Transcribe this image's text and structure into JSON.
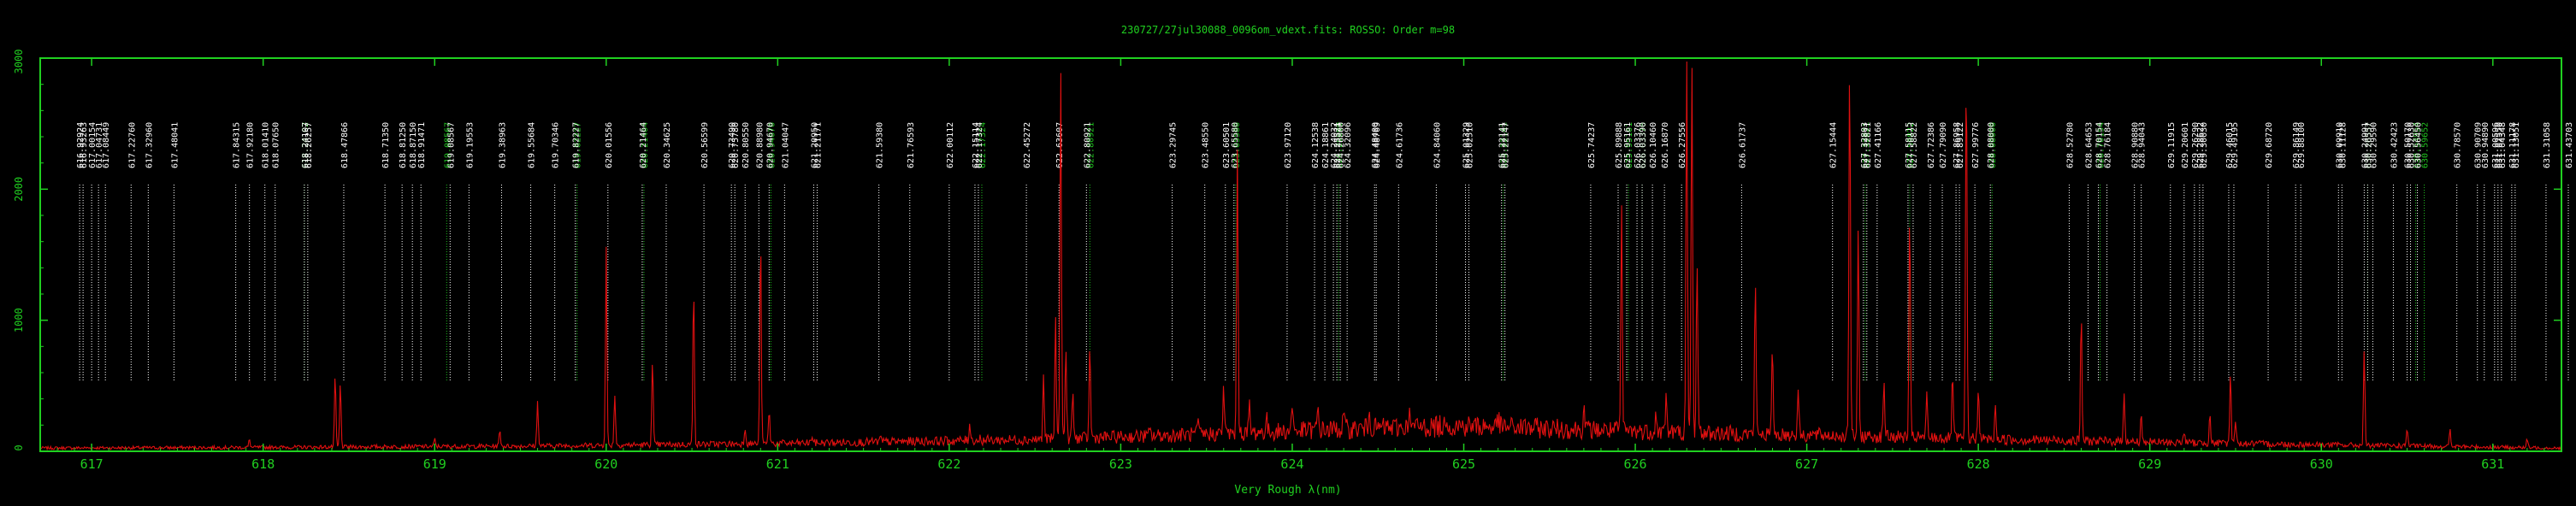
{
  "chart_data": {
    "type": "line",
    "title": "230727/27jul30088_0096om_vdext.fits: ROSSO: Order m=98",
    "xlabel": "Very Rough λ(nm)",
    "ylabel": "",
    "xlim": [
      616.7,
      631.4
    ],
    "ylim": [
      0,
      3000
    ],
    "grid": false,
    "legend": "none",
    "x_ticks": [
      617,
      618,
      619,
      620,
      621,
      622,
      623,
      624,
      625,
      626,
      627,
      628,
      629,
      630,
      631
    ],
    "y_ticks": [
      0,
      1000,
      2000,
      3000
    ],
    "y_tick_labels_visible": [
      "0",
      "1000",
      "2000",
      "3000"
    ],
    "series": [
      {
        "color": "#e01010",
        "continuum": [
          [
            616.7,
            25
          ],
          [
            618.0,
            30
          ],
          [
            619.5,
            40
          ],
          [
            621.0,
            60
          ],
          [
            622.5,
            90
          ],
          [
            623.5,
            130
          ],
          [
            624.3,
            170
          ],
          [
            625.0,
            195
          ],
          [
            625.6,
            170
          ],
          [
            626.4,
            140
          ],
          [
            627.2,
            120
          ],
          [
            628.0,
            95
          ],
          [
            629.0,
            70
          ],
          [
            630.0,
            50
          ],
          [
            631.4,
            25
          ]
        ],
        "peaks": [
          [
            617.92,
            90
          ],
          [
            618.07,
            40
          ],
          [
            618.42,
            580
          ],
          [
            618.45,
            520
          ],
          [
            619.0,
            90
          ],
          [
            619.38,
            160
          ],
          [
            619.6,
            380
          ],
          [
            620.0,
            1550
          ],
          [
            620.05,
            440
          ],
          [
            620.27,
            680
          ],
          [
            620.51,
            1270
          ],
          [
            620.81,
            190
          ],
          [
            620.9,
            1660
          ],
          [
            620.95,
            320
          ],
          [
            621.2,
            120
          ],
          [
            621.6,
            100
          ],
          [
            622.12,
            220
          ],
          [
            622.18,
            100
          ],
          [
            622.55,
            560
          ],
          [
            622.62,
            1000
          ],
          [
            622.65,
            3000
          ],
          [
            622.68,
            800
          ],
          [
            622.72,
            450
          ],
          [
            622.82,
            800
          ],
          [
            623.17,
            160
          ],
          [
            623.25,
            120
          ],
          [
            623.45,
            220
          ],
          [
            623.6,
            500
          ],
          [
            623.68,
            2350
          ],
          [
            623.75,
            350
          ],
          [
            623.85,
            250
          ],
          [
            624.0,
            380
          ],
          [
            624.15,
            330
          ],
          [
            624.3,
            300
          ],
          [
            624.45,
            360
          ],
          [
            624.68,
            300
          ],
          [
            624.9,
            300
          ],
          [
            625.2,
            260
          ],
          [
            625.7,
            350
          ],
          [
            625.92,
            1850
          ],
          [
            626.12,
            280
          ],
          [
            626.18,
            440
          ],
          [
            626.3,
            2960
          ],
          [
            626.33,
            3000
          ],
          [
            626.36,
            1500
          ],
          [
            626.7,
            1300
          ],
          [
            626.8,
            800
          ],
          [
            626.95,
            500
          ],
          [
            627.25,
            3000
          ],
          [
            627.3,
            1700
          ],
          [
            627.45,
            560
          ],
          [
            627.6,
            1800
          ],
          [
            627.7,
            420
          ],
          [
            627.85,
            600
          ],
          [
            627.93,
            3000
          ],
          [
            628.0,
            500
          ],
          [
            628.1,
            350
          ],
          [
            628.6,
            1050
          ],
          [
            628.85,
            470
          ],
          [
            628.95,
            280
          ],
          [
            629.2,
            160
          ],
          [
            629.35,
            300
          ],
          [
            629.47,
            580
          ],
          [
            629.5,
            250
          ],
          [
            630.25,
            750
          ],
          [
            630.5,
            180
          ],
          [
            630.75,
            160
          ],
          [
            631.2,
            90
          ]
        ]
      }
    ],
    "line_labels": {
      "color": "#ffffff",
      "items": [
        {
          "x": 616.93,
          "text": "616.92924"
        },
        {
          "x": 616.95,
          "text": "616.93263"
        },
        {
          "x": 617.0,
          "text": "617.00154"
        },
        {
          "x": 617.04,
          "text": "617.04731"
        },
        {
          "x": 617.08,
          "text": "617.08449"
        },
        {
          "x": 617.23,
          "text": "617.22760"
        },
        {
          "x": 617.33,
          "text": "617.32960"
        },
        {
          "x": 617.48,
          "text": "617.48041"
        },
        {
          "x": 617.84,
          "text": "617.84315"
        },
        {
          "x": 617.92,
          "text": "617.92180"
        },
        {
          "x": 618.01,
          "text": "618.01410"
        },
        {
          "x": 618.07,
          "text": "618.07650"
        },
        {
          "x": 618.24,
          "text": "618.24107"
        },
        {
          "x": 618.26,
          "text": "618.26257"
        },
        {
          "x": 618.47,
          "text": "618.47866"
        },
        {
          "x": 618.71,
          "text": "618.71350"
        },
        {
          "x": 618.81,
          "text": "618.81250"
        },
        {
          "x": 618.87,
          "text": "618.87150"
        },
        {
          "x": 618.92,
          "text": "618.91471"
        },
        {
          "x": 619.09,
          "text": "619.08567"
        },
        {
          "x": 619.2,
          "text": "619.19553"
        },
        {
          "x": 619.39,
          "text": "619.38963"
        },
        {
          "x": 619.56,
          "text": "619.55684"
        },
        {
          "x": 619.7,
          "text": "619.70346"
        },
        {
          "x": 619.82,
          "text": "619.82227"
        },
        {
          "x": 620.01,
          "text": "620.01556"
        },
        {
          "x": 620.21,
          "text": "620.21464"
        },
        {
          "x": 620.35,
          "text": "620.34625"
        },
        {
          "x": 620.57,
          "text": "620.56599"
        },
        {
          "x": 620.73,
          "text": "620.73490"
        },
        {
          "x": 620.75,
          "text": "620.75780"
        },
        {
          "x": 620.81,
          "text": "620.80550"
        },
        {
          "x": 620.89,
          "text": "620.88980"
        },
        {
          "x": 620.95,
          "text": "620.94670"
        },
        {
          "x": 621.04,
          "text": "621.04047"
        },
        {
          "x": 621.21,
          "text": "621.20950"
        },
        {
          "x": 621.23,
          "text": "621.21171"
        },
        {
          "x": 621.59,
          "text": "621.59380"
        },
        {
          "x": 621.77,
          "text": "621.76593"
        },
        {
          "x": 622.0,
          "text": "622.00112"
        },
        {
          "x": 622.15,
          "text": "622.15114"
        },
        {
          "x": 622.17,
          "text": "622.17324"
        },
        {
          "x": 622.45,
          "text": "622.45272"
        },
        {
          "x": 622.64,
          "text": "622.63607"
        },
        {
          "x": 622.8,
          "text": "622.80921"
        },
        {
          "x": 623.3,
          "text": "623.29745"
        },
        {
          "x": 623.49,
          "text": "623.48550"
        },
        {
          "x": 623.61,
          "text": "623.60501"
        },
        {
          "x": 623.66,
          "text": "623.65580"
        },
        {
          "x": 623.97,
          "text": "623.97120"
        },
        {
          "x": 624.13,
          "text": "624.12538"
        },
        {
          "x": 624.19,
          "text": "624.18861"
        },
        {
          "x": 624.24,
          "text": "624.24032"
        },
        {
          "x": 624.26,
          "text": "624.25521"
        },
        {
          "x": 624.28,
          "text": "624.26800"
        },
        {
          "x": 624.32,
          "text": "624.32096"
        },
        {
          "x": 624.48,
          "text": "624.48400"
        },
        {
          "x": 624.49,
          "text": "624.48769"
        },
        {
          "x": 624.62,
          "text": "624.61736"
        },
        {
          "x": 624.84,
          "text": "624.84060"
        },
        {
          "x": 625.01,
          "text": "625.01329"
        },
        {
          "x": 625.03,
          "text": "625.02510"
        },
        {
          "x": 625.22,
          "text": "625.22141"
        },
        {
          "x": 625.24,
          "text": "625.22147"
        },
        {
          "x": 625.74,
          "text": "625.74237"
        },
        {
          "x": 625.9,
          "text": "625.89888"
        },
        {
          "x": 625.95,
          "text": "625.95161"
        },
        {
          "x": 626.01,
          "text": "626.03376"
        },
        {
          "x": 626.04,
          "text": "626.03390"
        },
        {
          "x": 626.1,
          "text": "626.10460"
        },
        {
          "x": 626.17,
          "text": "626.16870"
        },
        {
          "x": 626.27,
          "text": "626.27556"
        },
        {
          "x": 626.62,
          "text": "626.61737"
        },
        {
          "x": 627.15,
          "text": "627.15444"
        },
        {
          "x": 627.33,
          "text": "627.32803"
        },
        {
          "x": 627.35,
          "text": "627.32821"
        },
        {
          "x": 627.41,
          "text": "627.41166"
        },
        {
          "x": 627.59,
          "text": "627.58115"
        },
        {
          "x": 627.62,
          "text": "627.58822"
        },
        {
          "x": 627.72,
          "text": "627.72386"
        },
        {
          "x": 627.79,
          "text": "627.79090"
        },
        {
          "x": 627.87,
          "text": "627.86958"
        },
        {
          "x": 627.89,
          "text": "627.89122"
        },
        {
          "x": 627.98,
          "text": "627.99776"
        },
        {
          "x": 628.07,
          "text": "628.08000"
        },
        {
          "x": 628.53,
          "text": "628.52780"
        },
        {
          "x": 628.64,
          "text": "628.64653"
        },
        {
          "x": 628.7,
          "text": "628.70154"
        },
        {
          "x": 628.75,
          "text": "628.76184"
        },
        {
          "x": 628.91,
          "text": "628.90880"
        },
        {
          "x": 628.95,
          "text": "628.94043"
        },
        {
          "x": 629.12,
          "text": "629.11915"
        },
        {
          "x": 629.2,
          "text": "629.20601"
        },
        {
          "x": 629.26,
          "text": "629.26290"
        },
        {
          "x": 629.29,
          "text": "629.28622"
        },
        {
          "x": 629.31,
          "text": "629.30030"
        },
        {
          "x": 629.46,
          "text": "629.46015"
        },
        {
          "x": 629.49,
          "text": "629.49195"
        },
        {
          "x": 629.69,
          "text": "629.68720"
        },
        {
          "x": 629.85,
          "text": "629.86149"
        },
        {
          "x": 629.88,
          "text": "629.88100"
        },
        {
          "x": 630.1,
          "text": "630.09910"
        },
        {
          "x": 630.12,
          "text": "630.11128"
        },
        {
          "x": 630.25,
          "text": "630.24991"
        },
        {
          "x": 630.27,
          "text": "630.26557"
        },
        {
          "x": 630.3,
          "text": "630.29590"
        },
        {
          "x": 630.42,
          "text": "630.42423"
        },
        {
          "x": 630.5,
          "text": "630.50170"
        },
        {
          "x": 630.52,
          "text": "630.52630"
        },
        {
          "x": 630.56,
          "text": "630.56450"
        },
        {
          "x": 630.79,
          "text": "630.78570"
        },
        {
          "x": 630.91,
          "text": "630.90709"
        },
        {
          "x": 630.95,
          "text": "630.94890"
        },
        {
          "x": 631.01,
          "text": "631.00596"
        },
        {
          "x": 631.03,
          "text": "631.02550"
        },
        {
          "x": 631.05,
          "text": "631.04348"
        },
        {
          "x": 631.11,
          "text": "631.11178"
        },
        {
          "x": 631.13,
          "text": "631.13051"
        },
        {
          "x": 631.31,
          "text": "631.31058"
        },
        {
          "x": 631.44,
          "text": "631.43703"
        }
      ]
    },
    "ref_labels": {
      "color": "#20c020",
      "items": [
        {
          "x": 618.24,
          "text": "618.24102"
        },
        {
          "x": 619.07,
          "text": "619.08567"
        },
        {
          "x": 619.83,
          "text": "619.82227"
        },
        {
          "x": 620.22,
          "text": "620.21464"
        },
        {
          "x": 620.96,
          "text": "620.94670"
        },
        {
          "x": 622.19,
          "text": "622.17324"
        },
        {
          "x": 622.82,
          "text": "622.80921"
        },
        {
          "x": 623.67,
          "text": "623.65580"
        },
        {
          "x": 624.27,
          "text": "624.26800"
        },
        {
          "x": 625.23,
          "text": "625.22141"
        },
        {
          "x": 625.96,
          "text": "625.95161"
        },
        {
          "x": 626.04,
          "text": "626.03376"
        },
        {
          "x": 627.34,
          "text": "627.32821"
        },
        {
          "x": 627.6,
          "text": "627.58822"
        },
        {
          "x": 628.08,
          "text": "628.08000"
        },
        {
          "x": 628.71,
          "text": "628.70154"
        },
        {
          "x": 630.27,
          "text": "630.26557"
        },
        {
          "x": 630.55,
          "text": "630.54954"
        },
        {
          "x": 630.6,
          "text": "630.59652"
        }
      ]
    }
  }
}
